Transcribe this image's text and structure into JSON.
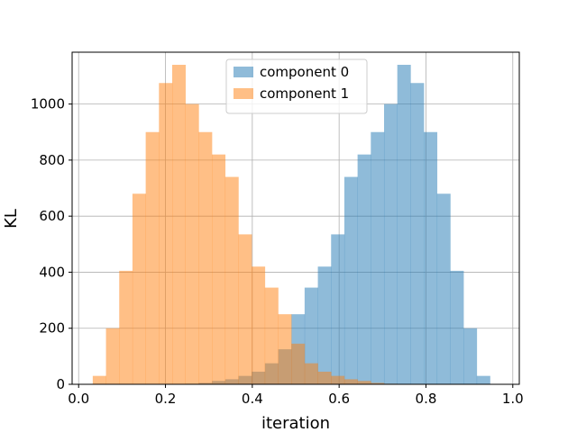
{
  "chart_data": {
    "type": "histogram",
    "xlabel": "iteration",
    "ylabel": "KL",
    "xlim": [
      -0.015,
      1.015
    ],
    "ylim": [
      0,
      1185
    ],
    "xticks": [
      0.0,
      0.2,
      0.4,
      0.6,
      0.8,
      1.0
    ],
    "xtick_labels": [
      "0.0",
      "0.2",
      "0.4",
      "0.6",
      "0.8",
      "1.0"
    ],
    "yticks": [
      0,
      200,
      400,
      600,
      800,
      1000
    ],
    "ytick_labels": [
      "0",
      "200",
      "400",
      "600",
      "800",
      "1000"
    ],
    "grid": true,
    "legend_position": "upper center",
    "bin_edges": [
      0.0325,
      0.063,
      0.0935,
      0.124,
      0.1545,
      0.185,
      0.2155,
      0.246,
      0.2765,
      0.307,
      0.3375,
      0.368,
      0.3985,
      0.429,
      0.4595,
      0.49,
      0.5205,
      0.551,
      0.5815,
      0.612,
      0.6425,
      0.673,
      0.7035,
      0.734,
      0.7645,
      0.795,
      0.8255,
      0.856,
      0.8865,
      0.917,
      0.9475,
      0.978
    ],
    "series": [
      {
        "name": "component 0",
        "color": "#1f77b4",
        "alpha": 0.5,
        "bin_start": [
          0.031,
          0.062,
          0.093,
          0.124,
          0.155,
          0.186,
          0.217,
          0.248,
          0.279,
          0.31,
          0.341,
          0.372,
          0.403,
          0.434,
          0.465,
          0.496,
          0.527,
          0.558,
          0.589,
          0.62,
          0.651,
          0.682,
          0.713,
          0.744,
          0.775,
          0.806,
          0.837,
          0.868,
          0.899,
          0.93
        ],
        "values": [
          0,
          0,
          0,
          0,
          0,
          0,
          0,
          2,
          5,
          12,
          18,
          30,
          45,
          75,
          125,
          250,
          345,
          420,
          535,
          740,
          820,
          900,
          1000,
          1140,
          1075,
          900,
          680,
          405,
          200,
          30
        ]
      },
      {
        "name": "component 1",
        "color": "#ff7f0e",
        "alpha": 0.5,
        "bin_start": [
          0.031,
          0.062,
          0.093,
          0.124,
          0.155,
          0.186,
          0.217,
          0.248,
          0.279,
          0.31,
          0.341,
          0.372,
          0.403,
          0.434,
          0.465,
          0.496,
          0.527,
          0.558,
          0.589,
          0.62,
          0.651,
          0.682,
          0.713,
          0.744,
          0.775,
          0.806,
          0.837,
          0.868,
          0.899,
          0.93
        ],
        "values": [
          30,
          200,
          405,
          680,
          900,
          1075,
          1140,
          1000,
          900,
          820,
          740,
          535,
          420,
          345,
          250,
          145,
          75,
          45,
          30,
          18,
          12,
          5,
          2,
          0,
          0,
          0,
          0,
          0,
          0,
          0
        ]
      }
    ]
  }
}
